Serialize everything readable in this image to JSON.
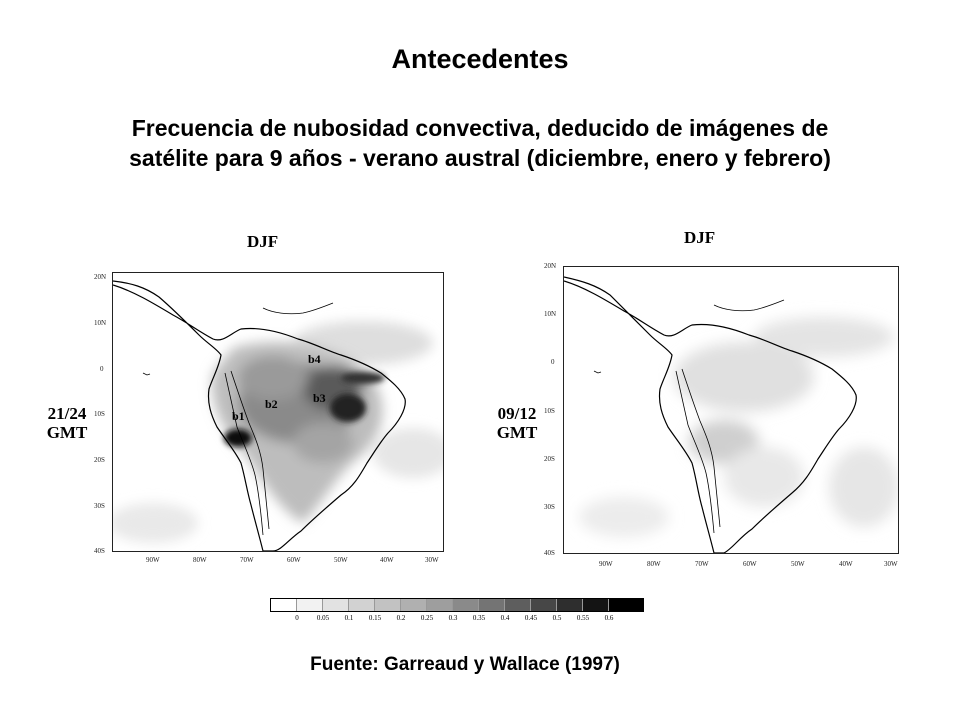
{
  "header": {
    "title": "Antecedentes",
    "subtitle_line1": "Frecuencia de nubosidad convectiva, deducido de imágenes de",
    "subtitle_line2": "satélite para 9 años - verano austral (diciembre, enero y febrero)"
  },
  "maps": [
    {
      "title": "DJF",
      "time_line1": "21/24",
      "time_line2": "GMT",
      "lat_ticks": [
        "20N",
        "10N",
        "0",
        "10S",
        "20S",
        "30S",
        "40S"
      ],
      "lon_ticks": [
        "90W",
        "80W",
        "70W",
        "60W",
        "50W",
        "40W",
        "30W"
      ],
      "region_labels": [
        "b1",
        "b2",
        "b3",
        "b4"
      ]
    },
    {
      "title": "DJF",
      "time_line1": "09/12",
      "time_line2": "GMT",
      "lat_ticks": [
        "20N",
        "10N",
        "0",
        "10S",
        "20S",
        "30S",
        "40S"
      ],
      "lon_ticks": [
        "90W",
        "80W",
        "70W",
        "60W",
        "50W",
        "40W",
        "30W"
      ]
    }
  ],
  "colorbar": {
    "labels": [
      "0",
      "0.05",
      "0.1",
      "0.15",
      "0.2",
      "0.25",
      "0.3",
      "0.35",
      "0.4",
      "0.45",
      "0.5",
      "0.55",
      "0.6"
    ],
    "colors": [
      "#ffffff",
      "#f2f2f2",
      "#e2e2e2",
      "#d2d2d2",
      "#c2c2c2",
      "#b0b0b0",
      "#9e9e9e",
      "#8a8a8a",
      "#747474",
      "#5e5e5e",
      "#474747",
      "#2e2e2e",
      "#141414",
      "#000000"
    ]
  },
  "footer": {
    "source": "Fuente: Garreaud y Wallace (1997)"
  }
}
